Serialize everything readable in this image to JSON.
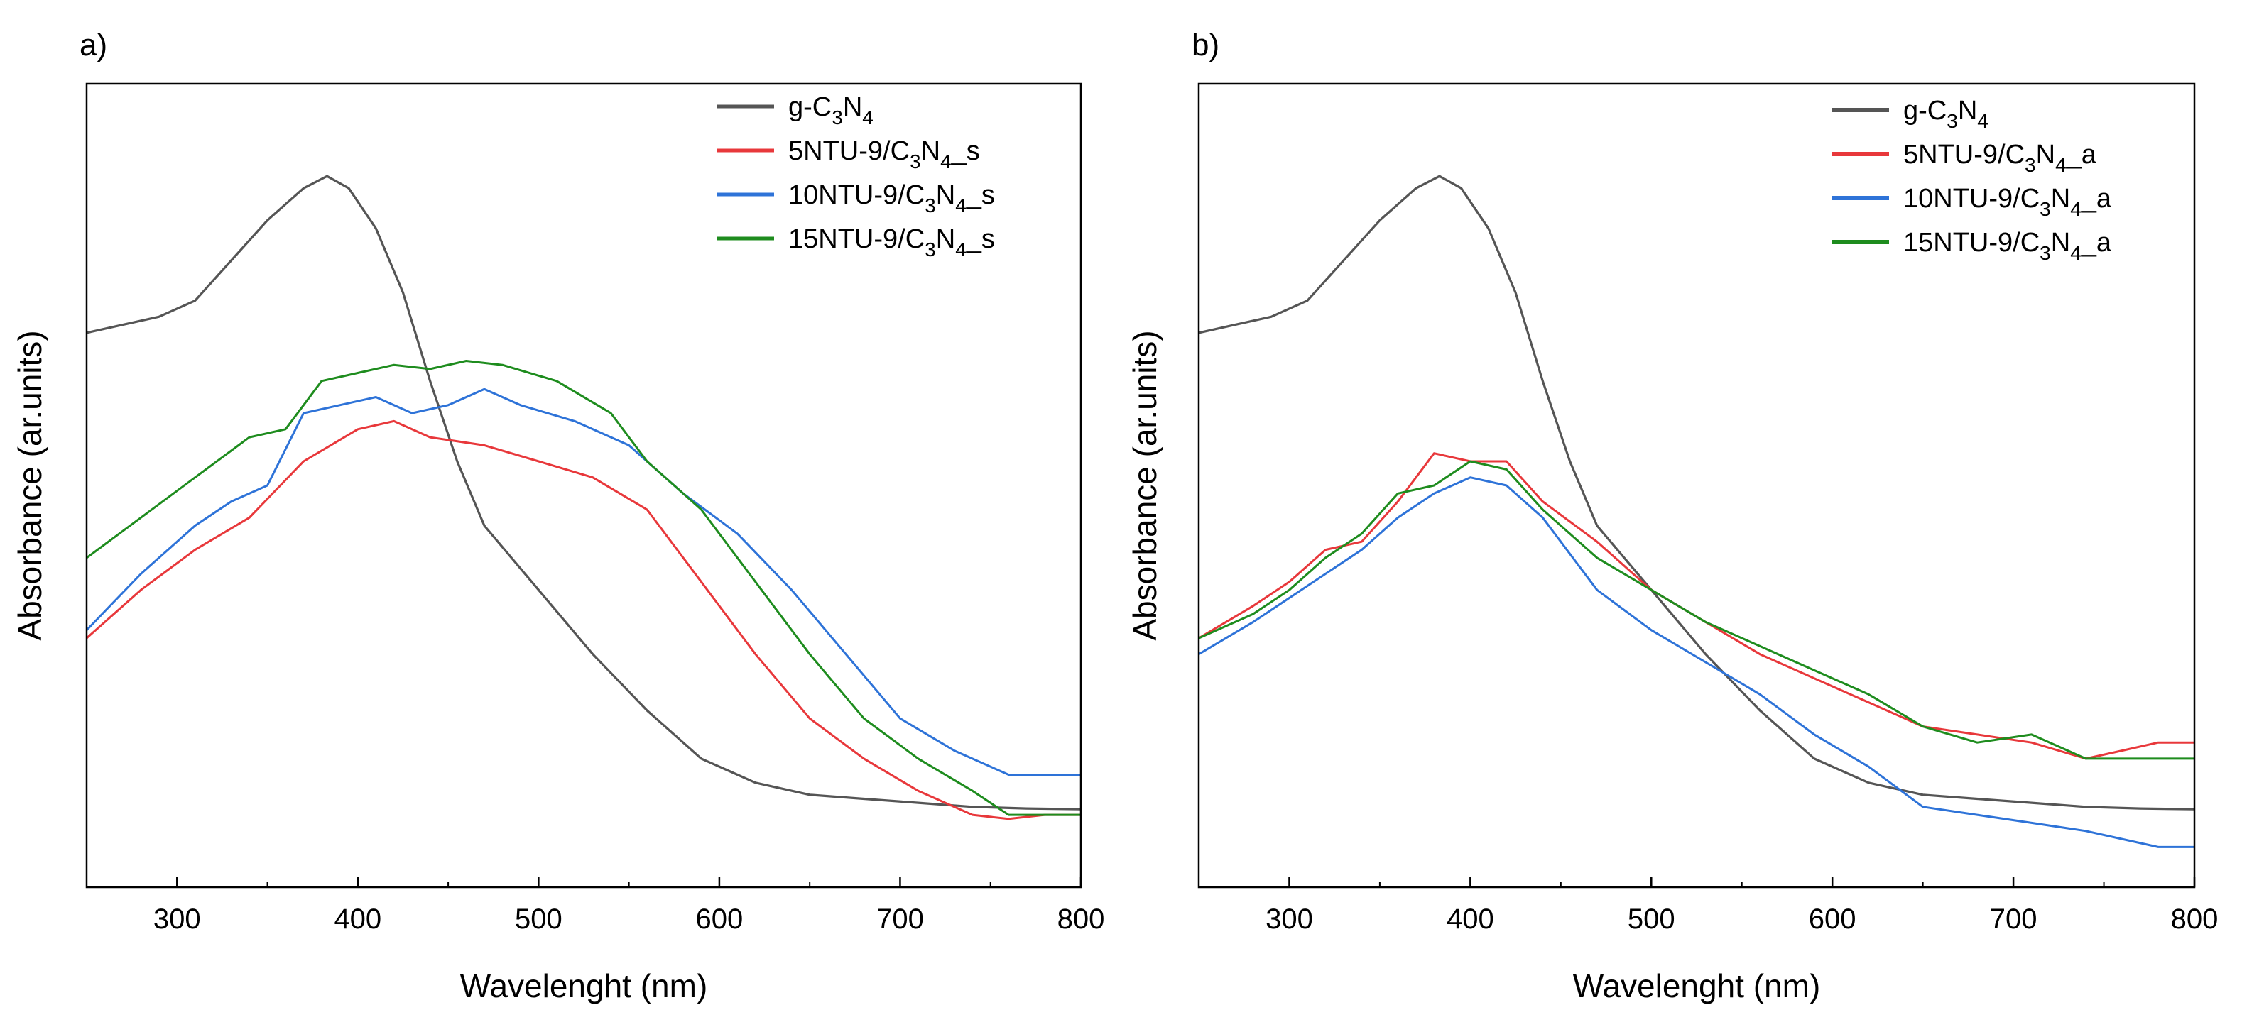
{
  "chart_data": [
    {
      "type": "line",
      "panel_label": "a)",
      "xlabel": "Wavelenght (nm)",
      "ylabel": "Absorbance (ar.units)",
      "xlim": [
        250,
        800
      ],
      "ylim": [
        0,
        1
      ],
      "xticks": [
        300,
        400,
        500,
        600,
        700,
        800
      ],
      "y_tick_labels_shown": false,
      "legend_position": "top-right",
      "series": [
        {
          "name": "g-C3N4",
          "label": {
            "pre": "g-C",
            "s1": "3",
            "mid": "N",
            "s2": "4",
            "post": ""
          },
          "color": "#555555",
          "x": [
            250,
            270,
            290,
            310,
            330,
            350,
            370,
            383,
            395,
            410,
            425,
            440,
            455,
            470,
            500,
            530,
            560,
            590,
            620,
            650,
            680,
            710,
            740,
            770,
            800
          ],
          "y": [
            0.69,
            0.7,
            0.71,
            0.73,
            0.78,
            0.83,
            0.87,
            0.885,
            0.87,
            0.82,
            0.74,
            0.63,
            0.53,
            0.45,
            0.37,
            0.29,
            0.22,
            0.16,
            0.13,
            0.115,
            0.11,
            0.105,
            0.1,
            0.098,
            0.097
          ]
        },
        {
          "name": "5NTU-9/C3N4_s",
          "label": {
            "pre": "5NTU-9/C",
            "s1": "3",
            "mid": "N",
            "s2": "4",
            "post": "_s"
          },
          "color": "#e8383b",
          "x": [
            250,
            280,
            310,
            340,
            370,
            400,
            420,
            440,
            470,
            500,
            530,
            560,
            590,
            620,
            650,
            680,
            710,
            740,
            760,
            780,
            800
          ],
          "y": [
            0.31,
            0.37,
            0.42,
            0.46,
            0.53,
            0.57,
            0.58,
            0.56,
            0.55,
            0.53,
            0.51,
            0.47,
            0.38,
            0.29,
            0.21,
            0.16,
            0.12,
            0.09,
            0.085,
            0.09,
            0.09
          ]
        },
        {
          "name": "10NTU-9/C3N4_s",
          "label": {
            "pre": "10NTU-9/C",
            "s1": "3",
            "mid": "N",
            "s2": "4",
            "post": "_s"
          },
          "color": "#2e73d8",
          "x": [
            250,
            280,
            310,
            330,
            350,
            370,
            390,
            410,
            430,
            450,
            470,
            490,
            520,
            550,
            580,
            610,
            640,
            670,
            700,
            730,
            760,
            780,
            800
          ],
          "y": [
            0.32,
            0.39,
            0.45,
            0.48,
            0.5,
            0.59,
            0.6,
            0.61,
            0.59,
            0.6,
            0.62,
            0.6,
            0.58,
            0.55,
            0.49,
            0.44,
            0.37,
            0.29,
            0.21,
            0.17,
            0.14,
            0.14,
            0.14
          ]
        },
        {
          "name": "15NTU-9/C3N4_s",
          "label": {
            "pre": "15NTU-9/C",
            "s1": "3",
            "mid": "N",
            "s2": "4",
            "post": "_s"
          },
          "color": "#1e8c1e",
          "x": [
            250,
            280,
            310,
            340,
            360,
            380,
            400,
            420,
            440,
            460,
            480,
            510,
            540,
            560,
            590,
            620,
            650,
            680,
            710,
            740,
            760,
            780,
            800
          ],
          "y": [
            0.41,
            0.46,
            0.51,
            0.56,
            0.57,
            0.63,
            0.64,
            0.65,
            0.645,
            0.655,
            0.65,
            0.63,
            0.59,
            0.53,
            0.47,
            0.38,
            0.29,
            0.21,
            0.16,
            0.12,
            0.09,
            0.09,
            0.09
          ]
        }
      ]
    },
    {
      "type": "line",
      "panel_label": "b)",
      "xlabel": "Wavelenght (nm)",
      "ylabel": "Absorbance (ar.units)",
      "xlim": [
        250,
        800
      ],
      "ylim": [
        0,
        1
      ],
      "xticks": [
        300,
        400,
        500,
        600,
        700,
        800
      ],
      "y_tick_labels_shown": false,
      "legend_position": "top-right",
      "series": [
        {
          "name": "g-C3N4",
          "label": {
            "pre": "g-C",
            "s1": "3",
            "mid": "N",
            "s2": "4",
            "post": ""
          },
          "color": "#555555",
          "x": [
            250,
            270,
            290,
            310,
            330,
            350,
            370,
            383,
            395,
            410,
            425,
            440,
            455,
            470,
            500,
            530,
            560,
            590,
            620,
            650,
            680,
            710,
            740,
            770,
            800
          ],
          "y": [
            0.69,
            0.7,
            0.71,
            0.73,
            0.78,
            0.83,
            0.87,
            0.885,
            0.87,
            0.82,
            0.74,
            0.63,
            0.53,
            0.45,
            0.37,
            0.29,
            0.22,
            0.16,
            0.13,
            0.115,
            0.11,
            0.105,
            0.1,
            0.098,
            0.097
          ]
        },
        {
          "name": "5NTU-9/C3N4_a",
          "label": {
            "pre": "5NTU-9/C",
            "s1": "3",
            "mid": "N",
            "s2": "4",
            "post": "_a"
          },
          "color": "#e8383b",
          "x": [
            250,
            280,
            300,
            320,
            340,
            360,
            380,
            400,
            420,
            440,
            470,
            500,
            530,
            560,
            590,
            620,
            650,
            680,
            710,
            740,
            760,
            780,
            800
          ],
          "y": [
            0.31,
            0.35,
            0.38,
            0.42,
            0.43,
            0.48,
            0.54,
            0.53,
            0.53,
            0.48,
            0.43,
            0.37,
            0.33,
            0.29,
            0.26,
            0.23,
            0.2,
            0.19,
            0.18,
            0.16,
            0.17,
            0.18,
            0.18
          ]
        },
        {
          "name": "10NTU-9/C3N4_a",
          "label": {
            "pre": "10NTU-9/C",
            "s1": "3",
            "mid": "N",
            "s2": "4",
            "post": "_a"
          },
          "color": "#2e73d8",
          "x": [
            250,
            280,
            300,
            320,
            340,
            360,
            380,
            400,
            420,
            440,
            470,
            500,
            530,
            560,
            590,
            620,
            650,
            680,
            710,
            740,
            760,
            780,
            800
          ],
          "y": [
            0.29,
            0.33,
            0.36,
            0.39,
            0.42,
            0.46,
            0.49,
            0.51,
            0.5,
            0.46,
            0.37,
            0.32,
            0.28,
            0.24,
            0.19,
            0.15,
            0.1,
            0.09,
            0.08,
            0.07,
            0.06,
            0.05,
            0.05
          ]
        },
        {
          "name": "15NTU-9/C3N4_a",
          "label": {
            "pre": "15NTU-9/C",
            "s1": "3",
            "mid": "N",
            "s2": "4",
            "post": "_a"
          },
          "color": "#1e8c1e",
          "x": [
            250,
            280,
            300,
            320,
            340,
            360,
            380,
            400,
            420,
            440,
            470,
            500,
            530,
            560,
            590,
            620,
            650,
            680,
            710,
            740,
            760,
            780,
            800
          ],
          "y": [
            0.31,
            0.34,
            0.37,
            0.41,
            0.44,
            0.49,
            0.5,
            0.53,
            0.52,
            0.47,
            0.41,
            0.37,
            0.33,
            0.3,
            0.27,
            0.24,
            0.2,
            0.18,
            0.19,
            0.16,
            0.16,
            0.16,
            0.16
          ]
        }
      ]
    }
  ]
}
